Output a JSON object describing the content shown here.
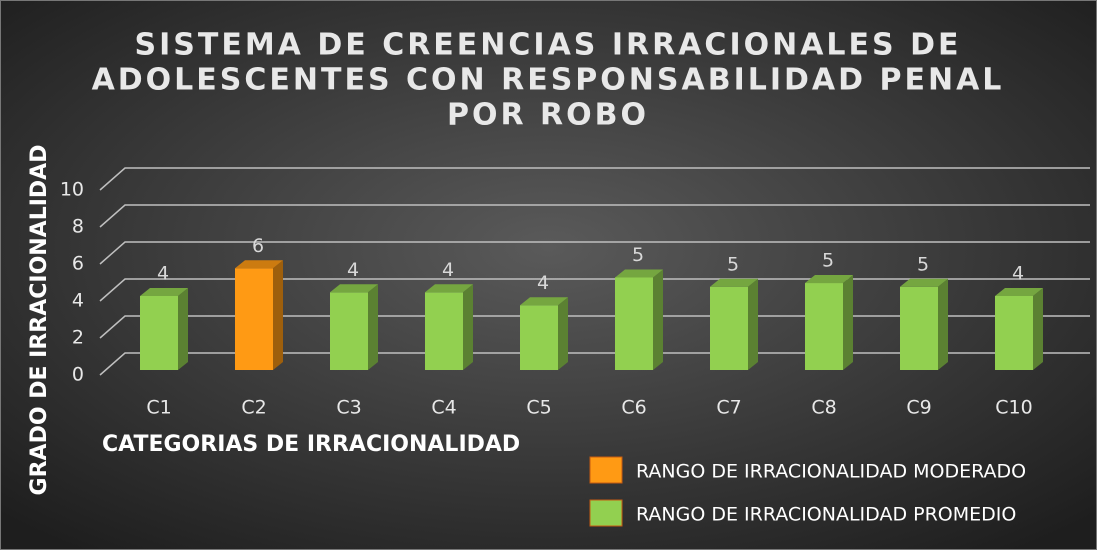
{
  "chart_data": {
    "type": "bar3d",
    "title": [
      "SISTEMA DE CREENCIAS IRRACIONALES DE",
      "ADOLESCENTES CON RESPONSABILIDAD PENAL",
      "POR ROBO"
    ],
    "y_axis_label": "GRADO DE IRRACIONALIDAD",
    "x_axis_label": "CATEGORIAS DE IRRACIONALIDAD",
    "categories": [
      "C1",
      "C2",
      "C3",
      "C4",
      "C5",
      "C6",
      "C7",
      "C8",
      "C9",
      "C10"
    ],
    "values": [
      4.0,
      5.5,
      4.2,
      4.2,
      3.5,
      5.0,
      4.5,
      4.7,
      4.5,
      4.0
    ],
    "value_labels": [
      "4",
      "6",
      "4",
      "4",
      "4",
      "5",
      "5",
      "5",
      "5",
      "4"
    ],
    "colors": [
      "#92d050",
      "#ff9a14",
      "#92d050",
      "#92d050",
      "#92d050",
      "#92d050",
      "#92d050",
      "#92d050",
      "#92d050",
      "#92d050"
    ],
    "ylim": [
      0,
      10
    ],
    "yticks": [
      0,
      2,
      4,
      6,
      8,
      10
    ],
    "grid": true,
    "legend": [
      {
        "name": "RANGO DE IRRACIONALIDAD MODERADO",
        "color": "#ff9a14"
      },
      {
        "name": "RANGO DE IRRACIONALIDAD  PROMEDIO",
        "color": "#92d050"
      }
    ]
  }
}
